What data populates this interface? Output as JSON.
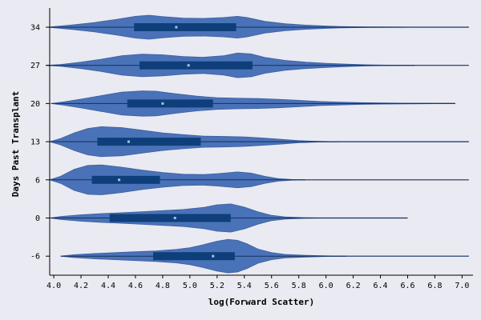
{
  "chart_data": {
    "type": "violin",
    "orientation": "horizontal",
    "xlabel": "log(Forward Scatter)",
    "ylabel": "Days Past Transplant",
    "xlim": [
      3.97,
      7.08
    ],
    "x_ticks": [
      4.0,
      4.2,
      4.4,
      4.6,
      4.8,
      5.0,
      5.2,
      5.4,
      5.6,
      5.8,
      6.0,
      6.2,
      6.4,
      6.6,
      6.8,
      7.0
    ],
    "x_tick_labels": [
      "4.0",
      "4.2",
      "4.4",
      "4.6",
      "4.8",
      "5.0",
      "5.2",
      "5.4",
      "5.6",
      "5.8",
      "6.0",
      "6.2",
      "6.4",
      "6.6",
      "6.8",
      "7.0"
    ],
    "categories": [
      "34",
      "27",
      "20",
      "13",
      "6",
      "0",
      "-6"
    ],
    "colors": {
      "violin_fill": "#4a72b8",
      "violin_stroke": "#3b5fa0",
      "box": "#0e3f7a",
      "whisker": "#13305e",
      "median": "#9fc4e8",
      "plot_background": "#eaeaf2"
    },
    "series": [
      {
        "category": "34",
        "whisker": [
          4.1,
          7.05
        ],
        "q1": 4.59,
        "median": 4.9,
        "q3": 5.34,
        "density": [
          [
            3.95,
            0.0
          ],
          [
            4.05,
            0.07
          ],
          [
            4.15,
            0.14
          ],
          [
            4.3,
            0.27
          ],
          [
            4.45,
            0.43
          ],
          [
            4.6,
            0.62
          ],
          [
            4.7,
            0.68
          ],
          [
            4.8,
            0.6
          ],
          [
            4.95,
            0.52
          ],
          [
            5.1,
            0.5
          ],
          [
            5.25,
            0.55
          ],
          [
            5.35,
            0.62
          ],
          [
            5.42,
            0.55
          ],
          [
            5.55,
            0.33
          ],
          [
            5.7,
            0.2
          ],
          [
            5.85,
            0.12
          ],
          [
            6.0,
            0.07
          ],
          [
            6.1,
            0.04
          ],
          [
            6.3,
            0.02
          ],
          [
            6.5,
            0.01
          ],
          [
            6.65,
            0.0
          ]
        ]
      },
      {
        "category": "27",
        "whisker": [
          4.12,
          7.05
        ],
        "q1": 4.63,
        "median": 4.99,
        "q3": 5.46,
        "density": [
          [
            3.95,
            0.0
          ],
          [
            4.05,
            0.05
          ],
          [
            4.2,
            0.18
          ],
          [
            4.35,
            0.35
          ],
          [
            4.5,
            0.55
          ],
          [
            4.65,
            0.64
          ],
          [
            4.8,
            0.6
          ],
          [
            4.95,
            0.5
          ],
          [
            5.1,
            0.46
          ],
          [
            5.25,
            0.55
          ],
          [
            5.35,
            0.7
          ],
          [
            5.45,
            0.65
          ],
          [
            5.55,
            0.45
          ],
          [
            5.7,
            0.28
          ],
          [
            5.85,
            0.18
          ],
          [
            6.0,
            0.12
          ],
          [
            6.15,
            0.07
          ],
          [
            6.3,
            0.03
          ],
          [
            6.5,
            0.01
          ],
          [
            6.65,
            0.0
          ]
        ]
      },
      {
        "category": "20",
        "whisker": [
          4.1,
          6.95
        ],
        "q1": 4.54,
        "median": 4.8,
        "q3": 5.17,
        "density": [
          [
            3.98,
            0.0
          ],
          [
            4.08,
            0.1
          ],
          [
            4.2,
            0.25
          ],
          [
            4.35,
            0.45
          ],
          [
            4.5,
            0.65
          ],
          [
            4.65,
            0.72
          ],
          [
            4.75,
            0.7
          ],
          [
            4.9,
            0.55
          ],
          [
            5.05,
            0.42
          ],
          [
            5.2,
            0.33
          ],
          [
            5.35,
            0.3
          ],
          [
            5.5,
            0.28
          ],
          [
            5.65,
            0.24
          ],
          [
            5.8,
            0.18
          ],
          [
            5.95,
            0.12
          ],
          [
            6.1,
            0.08
          ],
          [
            6.25,
            0.05
          ],
          [
            6.4,
            0.03
          ],
          [
            6.6,
            0.02
          ],
          [
            6.8,
            0.01
          ],
          [
            6.95,
            0.0
          ]
        ]
      },
      {
        "category": "13",
        "whisker": [
          4.08,
          7.05
        ],
        "q1": 4.32,
        "median": 4.55,
        "q3": 5.08,
        "density": [
          [
            3.97,
            0.0
          ],
          [
            4.05,
            0.18
          ],
          [
            4.15,
            0.5
          ],
          [
            4.25,
            0.75
          ],
          [
            4.35,
            0.85
          ],
          [
            4.5,
            0.8
          ],
          [
            4.65,
            0.65
          ],
          [
            4.8,
            0.5
          ],
          [
            4.95,
            0.4
          ],
          [
            5.1,
            0.32
          ],
          [
            5.25,
            0.3
          ],
          [
            5.4,
            0.27
          ],
          [
            5.55,
            0.2
          ],
          [
            5.7,
            0.12
          ],
          [
            5.8,
            0.06
          ],
          [
            5.95,
            0.02
          ],
          [
            6.1,
            0.0
          ]
        ]
      },
      {
        "category": "6",
        "whisker": [
          4.1,
          7.05
        ],
        "q1": 4.28,
        "median": 4.48,
        "q3": 4.78,
        "density": [
          [
            3.97,
            0.0
          ],
          [
            4.05,
            0.2
          ],
          [
            4.15,
            0.6
          ],
          [
            4.25,
            0.82
          ],
          [
            4.35,
            0.85
          ],
          [
            4.5,
            0.72
          ],
          [
            4.65,
            0.55
          ],
          [
            4.8,
            0.42
          ],
          [
            4.95,
            0.32
          ],
          [
            5.1,
            0.3
          ],
          [
            5.2,
            0.35
          ],
          [
            5.35,
            0.45
          ],
          [
            5.45,
            0.38
          ],
          [
            5.55,
            0.2
          ],
          [
            5.65,
            0.07
          ],
          [
            5.75,
            0.02
          ],
          [
            5.85,
            0.0
          ]
        ]
      },
      {
        "category": "0",
        "whisker": [
          4.1,
          6.6
        ],
        "q1": 4.41,
        "median": 4.89,
        "q3": 5.3,
        "density": [
          [
            3.97,
            0.0
          ],
          [
            4.05,
            0.08
          ],
          [
            4.2,
            0.18
          ],
          [
            4.35,
            0.25
          ],
          [
            4.5,
            0.3
          ],
          [
            4.65,
            0.36
          ],
          [
            4.8,
            0.42
          ],
          [
            4.95,
            0.48
          ],
          [
            5.1,
            0.6
          ],
          [
            5.2,
            0.75
          ],
          [
            5.3,
            0.8
          ],
          [
            5.4,
            0.62
          ],
          [
            5.5,
            0.35
          ],
          [
            5.6,
            0.15
          ],
          [
            5.7,
            0.06
          ],
          [
            5.85,
            0.02
          ],
          [
            6.0,
            0.0
          ]
        ]
      },
      {
        "category": "-6",
        "whisker": [
          4.08,
          7.05
        ],
        "q1": 4.73,
        "median": 5.17,
        "q3": 5.33,
        "density": [
          [
            4.05,
            0.0
          ],
          [
            4.15,
            0.08
          ],
          [
            4.3,
            0.15
          ],
          [
            4.45,
            0.2
          ],
          [
            4.6,
            0.25
          ],
          [
            4.75,
            0.3
          ],
          [
            4.9,
            0.38
          ],
          [
            5.0,
            0.48
          ],
          [
            5.1,
            0.65
          ],
          [
            5.2,
            0.85
          ],
          [
            5.28,
            0.95
          ],
          [
            5.35,
            0.9
          ],
          [
            5.42,
            0.7
          ],
          [
            5.5,
            0.4
          ],
          [
            5.6,
            0.2
          ],
          [
            5.7,
            0.1
          ],
          [
            5.85,
            0.05
          ],
          [
            6.0,
            0.02
          ],
          [
            6.15,
            0.0
          ]
        ]
      }
    ]
  }
}
